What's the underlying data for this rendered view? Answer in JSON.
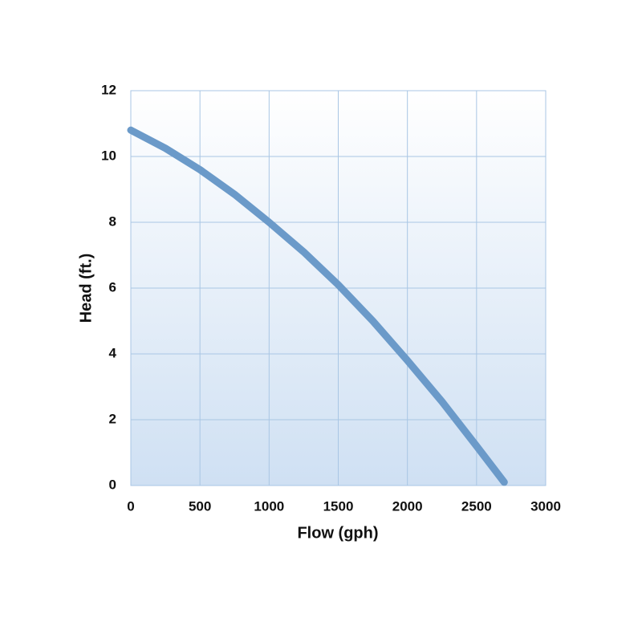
{
  "chart_data": {
    "type": "line",
    "x_label": "Flow (gph)",
    "y_label": "Head (ft.)",
    "x": [
      0,
      250,
      500,
      750,
      1000,
      1250,
      1500,
      1750,
      2000,
      2250,
      2500,
      2700
    ],
    "series": [
      {
        "color": "#6b9ac9",
        "values": [
          10.8,
          10.25,
          9.6,
          8.85,
          8.0,
          7.1,
          6.1,
          5.0,
          3.8,
          2.55,
          1.2,
          0.1
        ]
      }
    ],
    "xlim": [
      0,
      3000
    ],
    "ylim": [
      0,
      12
    ],
    "xticks": [
      0,
      500,
      1000,
      1500,
      2000,
      2500,
      3000
    ],
    "yticks": [
      0,
      2,
      4,
      6,
      8,
      10,
      12
    ],
    "grid": true
  }
}
